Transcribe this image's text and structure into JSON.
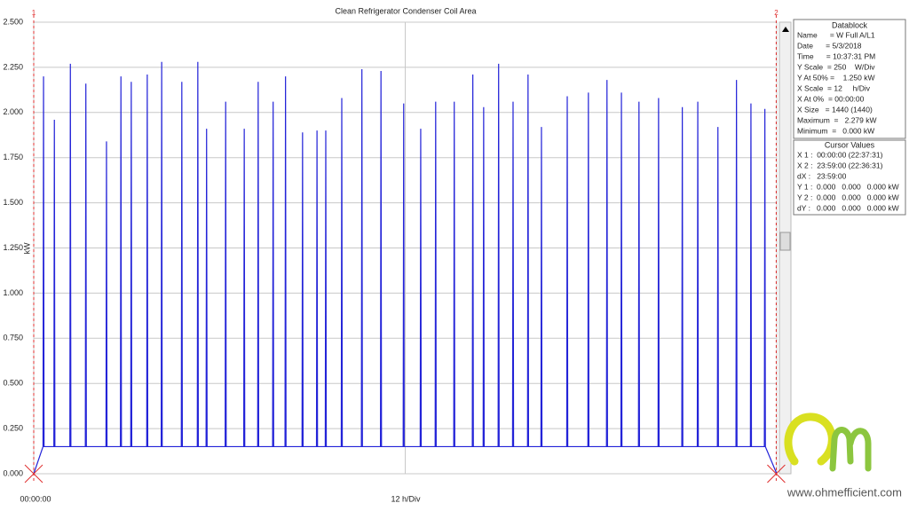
{
  "chart_data": {
    "type": "line",
    "title": "Clean Refrigerator Condenser Coil Area",
    "y_label": "kW",
    "x_origin_label": "00:00:00",
    "x_scale_label": "12 h/Div",
    "xlim": [
      0,
      1440
    ],
    "xticks": [
      0,
      720,
      1440
    ],
    "ylim": [
      0,
      2.5
    ],
    "yticks": [
      {
        "value": 0,
        "label": "0.000"
      },
      {
        "value": 0.25,
        "label": "0.250"
      },
      {
        "value": 0.5,
        "label": "0.500"
      },
      {
        "value": 0.75,
        "label": "0.750"
      },
      {
        "value": 1,
        "label": "1.000"
      },
      {
        "value": 1.25,
        "label": "1.250"
      },
      {
        "value": 1.5,
        "label": "1.500"
      },
      {
        "value": 1.75,
        "label": "1.750"
      },
      {
        "value": 2,
        "label": "2.000"
      },
      {
        "value": 2.25,
        "label": "2.250"
      },
      {
        "value": 2.5,
        "label": "2.500"
      }
    ],
    "grid": true,
    "color": "#2323d8",
    "cursors": [
      {
        "label": "1",
        "x": 0
      },
      {
        "label": "2",
        "x": 1439
      }
    ],
    "x": [
      0,
      18,
      19,
      20,
      39,
      40,
      41,
      70,
      71,
      72,
      100,
      101,
      102,
      140,
      141,
      142,
      168,
      169,
      170,
      188,
      189,
      190,
      219,
      220,
      221,
      247,
      248,
      249,
      286,
      287,
      288,
      317,
      318,
      319,
      334,
      335,
      336,
      371,
      372,
      373,
      407,
      408,
      409,
      434,
      435,
      436,
      463,
      464,
      465,
      487,
      488,
      489,
      520,
      521,
      522,
      548,
      549,
      550,
      565,
      566,
      567,
      596,
      597,
      598,
      635,
      636,
      637,
      672,
      673,
      674,
      716,
      717,
      718,
      749,
      750,
      751,
      778,
      779,
      780,
      814,
      815,
      816,
      850,
      851,
      852,
      871,
      872,
      873,
      900,
      901,
      902,
      928,
      929,
      930,
      957,
      958,
      959,
      983,
      984,
      985,
      1033,
      1034,
      1035,
      1074,
      1075,
      1076,
      1110,
      1111,
      1112,
      1138,
      1139,
      1140,
      1172,
      1173,
      1174,
      1210,
      1211,
      1212,
      1256,
      1257,
      1258,
      1286,
      1287,
      1288,
      1325,
      1326,
      1327,
      1361,
      1362,
      1363,
      1389,
      1390,
      1391,
      1416,
      1417,
      1418,
      1440
    ],
    "values": [
      0,
      0.15,
      2.2,
      0.15,
      0.15,
      1.96,
      0.15,
      0.15,
      2.27,
      0.15,
      0.15,
      2.16,
      0.15,
      0.15,
      1.84,
      0.15,
      0.15,
      2.2,
      0.15,
      0.15,
      2.17,
      0.15,
      0.15,
      2.21,
      0.15,
      0.15,
      2.28,
      0.15,
      0.15,
      2.17,
      0.15,
      0.15,
      2.28,
      0.15,
      0.15,
      1.91,
      0.15,
      0.15,
      2.06,
      0.15,
      0.15,
      1.91,
      0.15,
      0.15,
      2.17,
      0.15,
      0.15,
      2.06,
      0.15,
      0.15,
      2.2,
      0.15,
      0.15,
      1.89,
      0.15,
      0.15,
      1.9,
      0.15,
      0.15,
      1.9,
      0.15,
      0.15,
      2.08,
      0.15,
      0.15,
      2.24,
      0.15,
      0.15,
      2.23,
      0.15,
      0.15,
      2.05,
      0.15,
      0.15,
      1.91,
      0.15,
      0.15,
      2.06,
      0.15,
      0.15,
      2.06,
      0.15,
      0.15,
      2.21,
      0.15,
      0.15,
      2.03,
      0.15,
      0.15,
      2.27,
      0.15,
      0.15,
      2.06,
      0.15,
      0.15,
      2.21,
      0.15,
      0.15,
      1.92,
      0.15,
      0.15,
      2.09,
      0.15,
      0.15,
      2.11,
      0.15,
      0.15,
      2.18,
      0.15,
      0.15,
      2.11,
      0.15,
      0.15,
      2.06,
      0.15,
      0.15,
      2.08,
      0.15,
      0.15,
      2.03,
      0.15,
      0.15,
      2.06,
      0.15,
      0.15,
      1.92,
      0.15,
      0.15,
      2.18,
      0.15,
      0.15,
      2.05,
      0.15,
      0.15,
      2.02,
      0.15,
      0
    ]
  },
  "datablock": {
    "title": "Datablock",
    "rows": [
      "Name      = W Full A/L1",
      "Date      = 5/3/2018",
      "Time      = 10:37:31 PM",
      "Y Scale  = 250    W/Div",
      "Y At 50% =    1.250 kW",
      "X Scale  = 12     h/Div",
      "X At 0%  = 00:00:00",
      "X Size   = 1440 (1440)",
      "Maximum  =   2.279 kW",
      "Minimum  =   0.000 kW"
    ]
  },
  "cursor_values": {
    "title": "Cursor Values",
    "rows": [
      "X 1 :  00:00:00 (22:37:31)",
      "X 2 :  23:59:00 (22:36:31)",
      "dX :   23:59:00",
      "Y 1 :  0.000   0.000   0.000 kW",
      "Y 2 :  0.000   0.000   0.000 kW",
      "dY :   0.000   0.000   0.000 kW"
    ]
  },
  "watermark": "www.ohmefficient.com"
}
